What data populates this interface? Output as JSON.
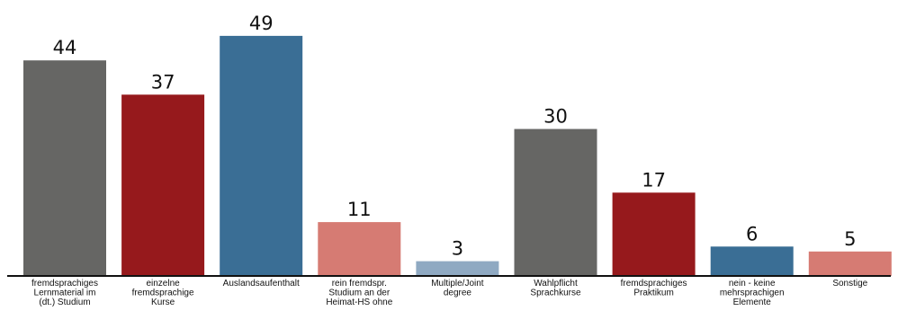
{
  "chart_data": {
    "type": "bar",
    "categories": [
      [
        "fremdsprachiges",
        "Lernmaterial im",
        "(dt.) Studium"
      ],
      [
        "einzelne",
        "fremdsprachige",
        "Kurse"
      ],
      [
        "Auslandsaufenthalt"
      ],
      [
        "rein fremdspr.",
        "Studium an der",
        "Heimat-HS ohne",
        "..."
      ],
      [
        "Multiple/Joint",
        "degree"
      ],
      [
        "Wahlpflicht",
        "Sprachkurse"
      ],
      [
        "fremdsprachiges",
        "Praktikum"
      ],
      [
        "nein - keine",
        "mehrsprachigen",
        "Elemente"
      ],
      [
        "Sonstige"
      ]
    ],
    "values": [
      44,
      37,
      49,
      11,
      3,
      30,
      17,
      6,
      5
    ],
    "colors": [
      "#666664",
      "#96191c",
      "#3a6e95",
      "#d67b73",
      "#8fa9c2",
      "#666664",
      "#96191c",
      "#3a6e95",
      "#d67b73"
    ],
    "ylim": [
      0,
      50
    ],
    "grid": false,
    "legend": "none",
    "axis_color": "#111111"
  }
}
